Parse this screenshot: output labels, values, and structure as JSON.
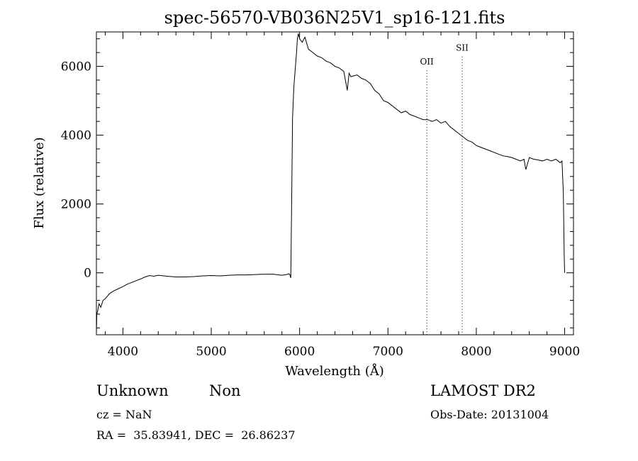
{
  "chart_data": {
    "type": "line",
    "title": "spec-56570-VB036N25V1_sp16-121.fits",
    "xlabel": "Wavelength (Å)",
    "ylabel": "Flux (relative)",
    "xlim": [
      3700,
      9100
    ],
    "ylim": [
      -1800,
      7000
    ],
    "x_ticks": [
      4000,
      5000,
      6000,
      7000,
      8000,
      9000
    ],
    "y_ticks": [
      0,
      2000,
      4000,
      6000
    ],
    "grid": false,
    "line_color": "#000000",
    "series": [
      {
        "x": [
          3700,
          3705,
          3715,
          3730,
          3750,
          3775,
          3800,
          3850,
          3900,
          3950,
          4000,
          4050,
          4100,
          4150,
          4200,
          4250,
          4300,
          4350,
          4400,
          4500,
          4600,
          4700,
          4800,
          4900,
          5000,
          5100,
          5200,
          5300,
          5400,
          5500,
          5600,
          5700,
          5800,
          5850,
          5880,
          5890,
          5900,
          5910,
          5920,
          5935,
          5950,
          5965,
          5975,
          5985,
          6000,
          6030,
          6060,
          6100,
          6150,
          6200,
          6250,
          6300,
          6350,
          6400,
          6450,
          6500,
          6540,
          6560,
          6580,
          6650,
          6700,
          6750,
          6800,
          6850,
          6900,
          6950,
          7000,
          7050,
          7100,
          7150,
          7200,
          7250,
          7300,
          7350,
          7400,
          7450,
          7500,
          7550,
          7600,
          7650,
          7700,
          7750,
          7800,
          7850,
          7900,
          7950,
          8000,
          8050,
          8100,
          8150,
          8200,
          8250,
          8300,
          8350,
          8400,
          8450,
          8500,
          8540,
          8560,
          8600,
          8650,
          8700,
          8750,
          8800,
          8850,
          8900,
          8950,
          8970,
          8985,
          8995,
          9000
        ],
        "y": [
          -1750,
          -1200,
          -1100,
          -900,
          -1000,
          -800,
          -750,
          -600,
          -520,
          -460,
          -400,
          -330,
          -280,
          -230,
          -180,
          -120,
          -80,
          -100,
          -70,
          -100,
          -120,
          -120,
          -110,
          -90,
          -80,
          -90,
          -70,
          -60,
          -60,
          -50,
          -40,
          -40,
          -70,
          -50,
          -30,
          -50,
          -150,
          2000,
          4500,
          5400,
          5900,
          6400,
          6800,
          6950,
          6800,
          6700,
          6850,
          6500,
          6400,
          6300,
          6250,
          6150,
          6100,
          6000,
          5950,
          5850,
          5300,
          5800,
          5700,
          5750,
          5650,
          5600,
          5500,
          5300,
          5200,
          5000,
          4950,
          4850,
          4750,
          4650,
          4700,
          4600,
          4550,
          4500,
          4450,
          4450,
          4400,
          4450,
          4350,
          4400,
          4250,
          4150,
          4050,
          3950,
          3850,
          3800,
          3700,
          3650,
          3600,
          3550,
          3500,
          3450,
          3400,
          3380,
          3350,
          3300,
          3250,
          3300,
          3000,
          3350,
          3300,
          3280,
          3250,
          3300,
          3250,
          3300,
          3200,
          3250,
          2300,
          500,
          0
        ]
      }
    ],
    "annotations": [
      {
        "label": "OII",
        "x": 7440,
        "label_y": 6050
      },
      {
        "label": "SII",
        "x": 7840,
        "label_y": 6450
      }
    ]
  },
  "footer": {
    "object_class": "Unknown",
    "subclass": "Non",
    "survey": "LAMOST DR2",
    "cz": "cz = NaN",
    "obs_date": "Obs-Date: 20131004",
    "coords": "RA =  35.83941, DEC =  26.86237"
  }
}
